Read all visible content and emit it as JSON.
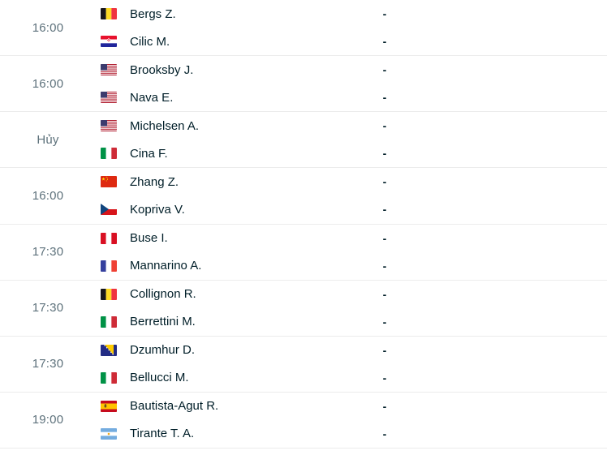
{
  "list": {
    "score_placeholder": "-",
    "matches": [
      {
        "time_label": "16:00",
        "status": "scheduled",
        "players": [
          {
            "name": "Bergs Z.",
            "flag": "belgium",
            "score": "-"
          },
          {
            "name": "Cilic M.",
            "flag": "croatia",
            "score": "-"
          }
        ]
      },
      {
        "time_label": "16:00",
        "status": "scheduled",
        "players": [
          {
            "name": "Brooksby J.",
            "flag": "usa",
            "score": "-"
          },
          {
            "name": "Nava E.",
            "flag": "usa",
            "score": "-"
          }
        ]
      },
      {
        "time_label": "Hủy",
        "status": "cancelled",
        "players": [
          {
            "name": "Michelsen A.",
            "flag": "usa",
            "score": "-"
          },
          {
            "name": "Cina F.",
            "flag": "italy",
            "score": "-"
          }
        ]
      },
      {
        "time_label": "16:00",
        "status": "scheduled",
        "players": [
          {
            "name": "Zhang Z.",
            "flag": "china",
            "score": "-"
          },
          {
            "name": "Kopriva V.",
            "flag": "czechia",
            "score": "-"
          }
        ]
      },
      {
        "time_label": "17:30",
        "status": "scheduled",
        "players": [
          {
            "name": "Buse I.",
            "flag": "peru",
            "score": "-"
          },
          {
            "name": "Mannarino A.",
            "flag": "france",
            "score": "-"
          }
        ]
      },
      {
        "time_label": "17:30",
        "status": "scheduled",
        "players": [
          {
            "name": "Collignon R.",
            "flag": "belgium",
            "score": "-"
          },
          {
            "name": "Berrettini M.",
            "flag": "italy",
            "score": "-"
          }
        ]
      },
      {
        "time_label": "17:30",
        "status": "scheduled",
        "players": [
          {
            "name": "Dzumhur D.",
            "flag": "bosnia-herzegovina",
            "score": "-"
          },
          {
            "name": "Bellucci M.",
            "flag": "italy",
            "score": "-"
          }
        ]
      },
      {
        "time_label": "19:00",
        "status": "scheduled",
        "players": [
          {
            "name": "Bautista-Agut R.",
            "flag": "spain",
            "score": "-"
          },
          {
            "name": "Tirante T. A.",
            "flag": "argentina",
            "score": "-"
          }
        ]
      }
    ]
  },
  "colors": {
    "player_name": "#001e28",
    "time_text": "#5d717b",
    "divider": "#ececec",
    "background": "#ffffff"
  }
}
